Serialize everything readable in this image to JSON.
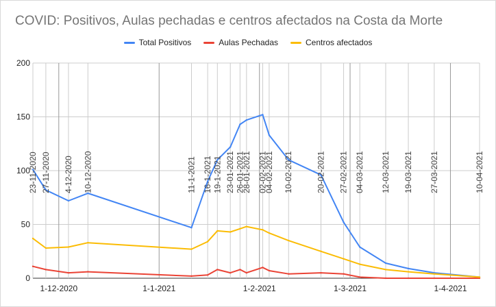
{
  "chart_data": {
    "type": "line",
    "title": "COVID: Positivos, Aulas pechadas e centros afectados na Costa da Morte",
    "ylim": [
      0,
      200
    ],
    "yticks": [
      0,
      50,
      100,
      150,
      200
    ],
    "x_date_range": [
      "2020-11-23",
      "2021-04-10"
    ],
    "x_major_ticks": [
      {
        "date": "2020-12-01",
        "label": "1-12-2020"
      },
      {
        "date": "2021-01-01",
        "label": "1-1-2021"
      },
      {
        "date": "2021-02-01",
        "label": "1-2-2021"
      },
      {
        "date": "2021-03-01",
        "label": "1-3-2021"
      },
      {
        "date": "2021-04-01",
        "label": "1-4-2021"
      }
    ],
    "x": [
      "2020-11-23",
      "2020-11-27",
      "2020-12-04",
      "2020-12-10",
      "2021-01-11",
      "2021-01-16",
      "2021-01-19",
      "2021-01-23",
      "2021-01-26",
      "2021-01-28",
      "2021-02-02",
      "2021-02-04",
      "2021-02-10",
      "2021-02-20",
      "2021-02-27",
      "2021-03-04",
      "2021-03-12",
      "2021-03-19",
      "2021-03-27",
      "2021-04-10"
    ],
    "x_labels": [
      "23-11-2020",
      "27-11-2020",
      "4-12-2020",
      "10-12-2020",
      "11-1-2021",
      "16-1-2021",
      "19-1-2021",
      "23-01-2021",
      "26-01-2021",
      "28-01-2021",
      "02-02-2021",
      "04-02-2021",
      "10-02-2021",
      "20-02-2021",
      "27-02-2021",
      "04-03-2021",
      "12-03-2021",
      "19-03-2021",
      "27-03-2021",
      "10-04-2021"
    ],
    "series": [
      {
        "name": "Total Positivos",
        "color": "#4285f4",
        "values": [
          101,
          82,
          72,
          79,
          47,
          90,
          110,
          122,
          143,
          147,
          152,
          133,
          110,
          96,
          52,
          29,
          14,
          9,
          5,
          1
        ]
      },
      {
        "name": "Aulas Pechadas",
        "color": "#ea4335",
        "values": [
          11,
          8,
          5,
          6,
          2,
          3,
          8,
          5,
          8,
          5,
          10,
          7,
          4,
          5,
          4,
          1,
          0,
          0,
          0,
          0
        ]
      },
      {
        "name": "Centros afectados",
        "color": "#fbbc04",
        "values": [
          37,
          28,
          29,
          33,
          27,
          34,
          44,
          43,
          46,
          48,
          45,
          42,
          35,
          25,
          18,
          13,
          8,
          6,
          4,
          1
        ]
      }
    ],
    "grid": true,
    "legend_position": "top"
  }
}
